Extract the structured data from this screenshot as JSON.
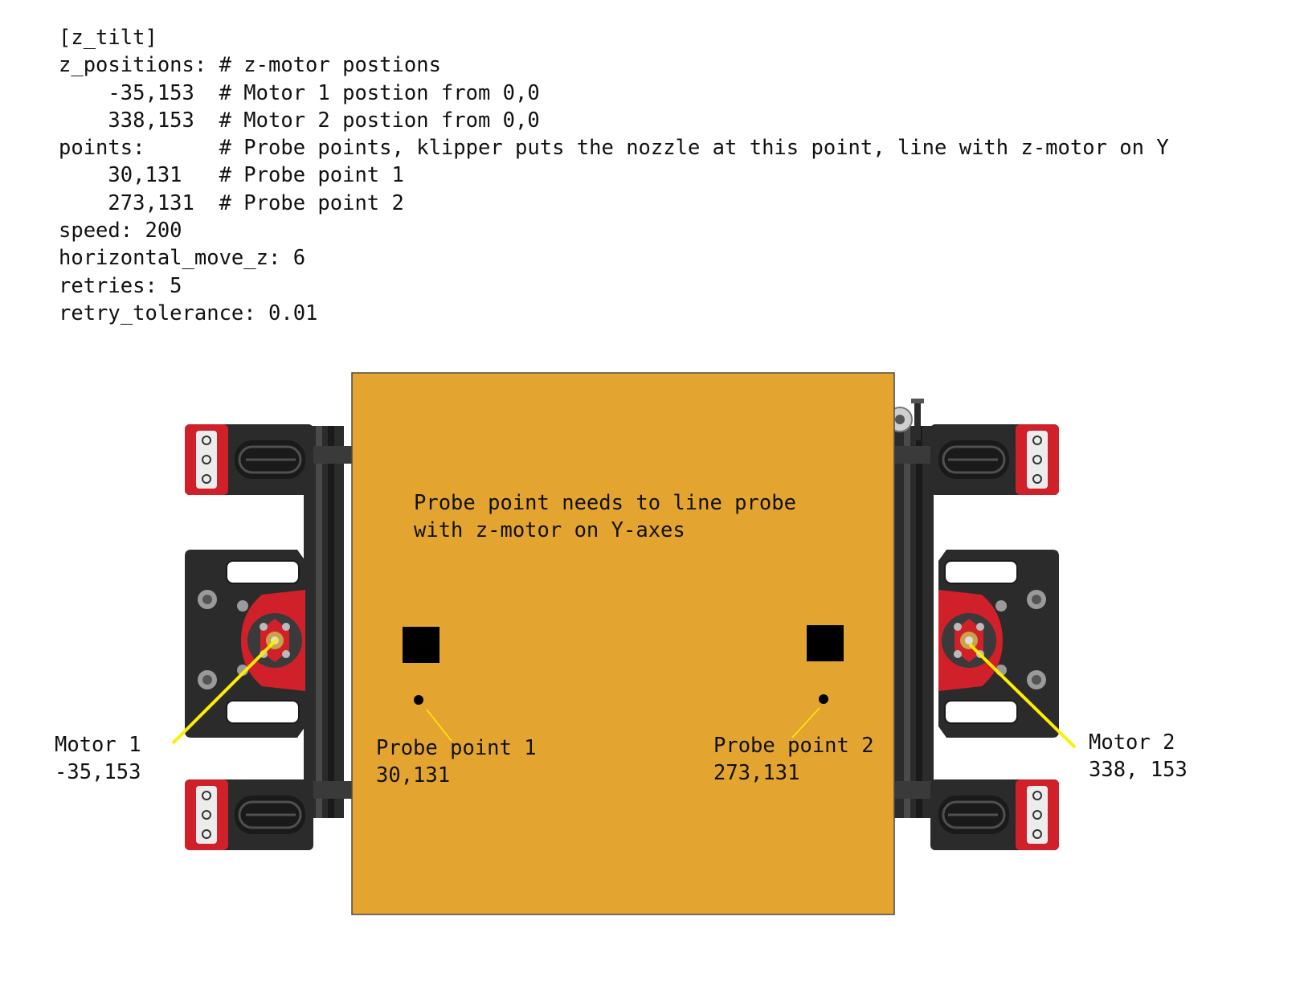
{
  "config": {
    "lines": [
      "[z_tilt]",
      "z_positions: # z-motor postions",
      "    -35,153  # Motor 1 postion from 0,0",
      "    338,153  # Motor 2 postion from 0,0",
      "points:      # Probe points, klipper puts the nozzle at this point, line with z-motor on Y",
      "    30,131   # Probe point 1",
      "    273,131  # Probe point 2",
      "speed: 200",
      "horizontal_move_z: 6",
      "retries: 5",
      "retry_tolerance: 0.01"
    ]
  },
  "diagram": {
    "note_line1": "Probe point needs to line probe",
    "note_line2": "with z-motor on Y-axes",
    "motor1": {
      "name": "Motor 1",
      "coords": "-35,153"
    },
    "motor2": {
      "name": "Motor 2",
      "coords": "338, 153"
    },
    "probe1": {
      "name": "Probe point 1",
      "coords": "30,131"
    },
    "probe2": {
      "name": "Probe point 2",
      "coords": "273,131"
    }
  },
  "colors": {
    "bed": "#E3A530",
    "frame": "#2B2B2B",
    "red_part": "#D0202A",
    "leader": "#FFEE00",
    "text": "#111111"
  }
}
